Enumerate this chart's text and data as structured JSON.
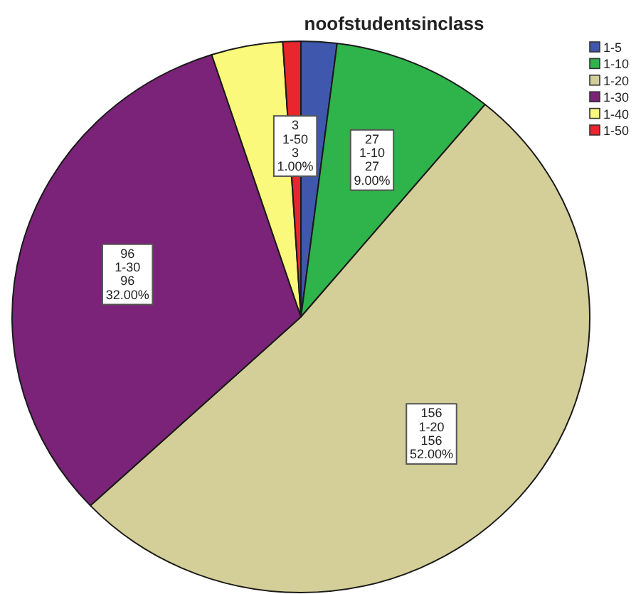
{
  "chart_data": {
    "type": "pie",
    "title": "noofstudentsinclass",
    "categories": [
      "1-5",
      "1-10",
      "1-20",
      "1-30",
      "1-40",
      "1-50"
    ],
    "values": [
      6,
      27,
      156,
      96,
      12,
      3
    ],
    "colors": [
      "#3f58ad",
      "#2fb34b",
      "#d4cf98",
      "#7b2378",
      "#fbf97b",
      "#e8262b"
    ],
    "value_labels": [
      null,
      "27\n1-10\n27\n9.00%",
      "156\n1-20\n156\n52.00%",
      "96\n1-30\n96\n32.00%",
      null,
      "3\n1-50\n3\n1.00%"
    ],
    "legend": "top right"
  }
}
